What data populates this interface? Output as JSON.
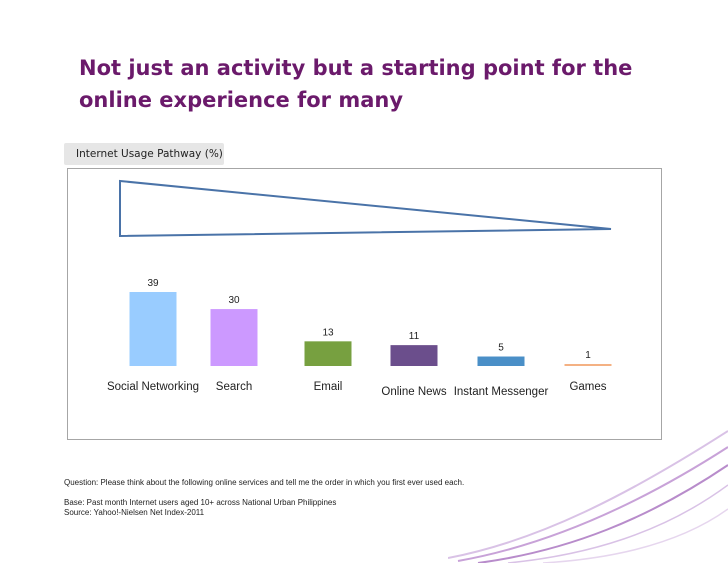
{
  "slide": {
    "title": "Not just an activity but a starting point for the online experience for many",
    "tab_label": "Internet Usage Pathway (%)"
  },
  "chart_data": {
    "type": "bar",
    "categories": [
      "Social Networking",
      "Search",
      "Email",
      "Online News",
      "Instant Messenger",
      "Games"
    ],
    "values": [
      39,
      30,
      13,
      11,
      5,
      1
    ],
    "value_labels": [
      "39",
      "30",
      "13",
      "11",
      "5",
      "1"
    ],
    "colors": [
      "#99ccff",
      "#cc99ff",
      "#77a040",
      "#6b4e8c",
      "#4a8fc7",
      "#f4b183"
    ],
    "title": "Internet Usage Pathway (%)",
    "xlabel": "",
    "ylabel": "",
    "ylim": [
      0,
      39
    ],
    "grid": false,
    "legend": "none"
  },
  "footnotes": {
    "question": "Question: Please think about the following online services and tell me the order in which you first ever used each.",
    "base": "Base: Past month Internet users aged 10+ across National Urban Philippines",
    "source": "Source: Yahoo!-Nielsen Net Index-2011"
  },
  "colors": {
    "title": "#6b1a6b",
    "funnel_outline": "#4a73a8",
    "deco_purple": "#c8a2d8"
  }
}
